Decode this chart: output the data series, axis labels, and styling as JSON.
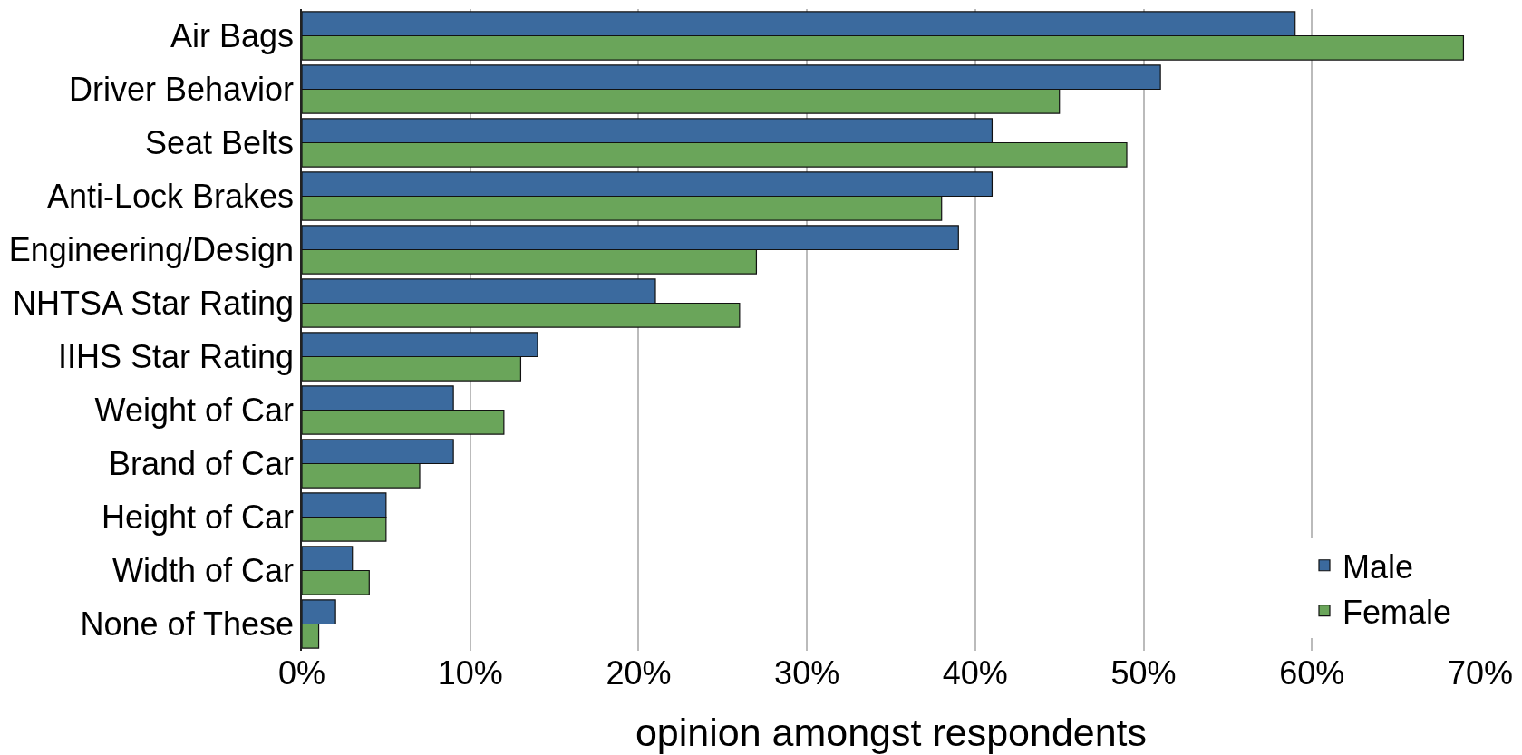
{
  "chart_data": {
    "type": "bar",
    "orientation": "horizontal",
    "xlabel": "opinion amongst respondents",
    "categories": [
      "Air Bags",
      "Driver Behavior",
      "Seat Belts",
      "Anti-Lock Brakes",
      "Engineering/Design",
      "NHTSA Star Rating",
      "IIHS Star Rating",
      "Weight of Car",
      "Brand of Car",
      "Height of Car",
      "Width of Car",
      "None of These"
    ],
    "series": [
      {
        "name": "Male",
        "color": "#3b6a9e",
        "values": [
          59,
          51,
          41,
          41,
          39,
          21,
          14,
          9,
          9,
          5,
          3,
          2
        ]
      },
      {
        "name": "Female",
        "color": "#6aa55a",
        "values": [
          69,
          45,
          49,
          38,
          27,
          26,
          13,
          12,
          7,
          5,
          4,
          1
        ]
      }
    ],
    "xlim": [
      0,
      70
    ],
    "xticks": [
      {
        "value": 0,
        "label": "0%"
      },
      {
        "value": 10,
        "label": "10%"
      },
      {
        "value": 20,
        "label": "20%"
      },
      {
        "value": 30,
        "label": "30%"
      },
      {
        "value": 40,
        "label": "40%"
      },
      {
        "value": 50,
        "label": "50%"
      },
      {
        "value": 60,
        "label": "60%"
      },
      {
        "value": 70,
        "label": "70%"
      }
    ],
    "grid": "x",
    "legend": "bottom right"
  }
}
